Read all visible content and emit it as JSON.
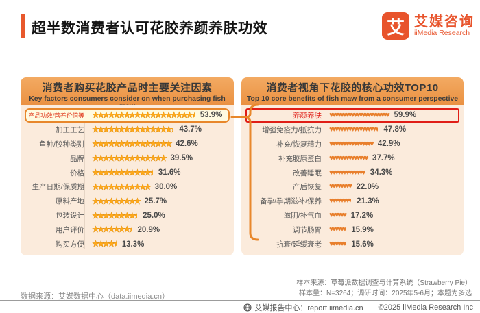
{
  "header": {
    "title": "超半数消费者认可花胶养颜养肤功效",
    "logo": {
      "mark": "艾",
      "name_cn": "艾媒咨询",
      "name_en": "iiMedia Research"
    }
  },
  "colors": {
    "accent_orange_red": "#E8582C",
    "panel_header_orange": "#EFA155",
    "panel_body_peach": "#FBEBDC",
    "star_gold": "#FFA91A",
    "heart_orange": "#E87F2C",
    "highlight_border_left": "#E8872B",
    "highlight_border_right": "#E01E17"
  },
  "chart_data": [
    {
      "type": "bar",
      "icon": "star",
      "title": "消费者购买花胶产品时主要关注因素",
      "subtitle": "Key factors consumers consider on when purchasing fish maw",
      "unit": "%",
      "categories": [
        "产品功效/营养价值等",
        "加工工艺",
        "鱼种/胶种类别",
        "品牌",
        "价格",
        "生产日期/保质期",
        "原料产地",
        "包装设计",
        "用户评价",
        "购买方便"
      ],
      "values": [
        53.9,
        43.7,
        42.6,
        39.5,
        31.6,
        30.0,
        25.7,
        25.0,
        20.9,
        13.3
      ],
      "icon_counts": [
        19.5,
        15.5,
        15,
        14,
        11.5,
        11,
        9,
        8.5,
        7.5,
        4.5
      ],
      "highlight_index": 0,
      "xlim": [
        0,
        60
      ],
      "legend": "none"
    },
    {
      "type": "bar",
      "icon": "heart",
      "title": "消费者视角下花胶的核心功效TOP10",
      "subtitle": "Top 10 core benefits of fish maw from a consumer perspective",
      "unit": "%",
      "categories": [
        "养颜养肤",
        "增强免疫力/抵抗力",
        "补充/恢复精力",
        "补充胶原蛋白",
        "改善睡眠",
        "产后恢复",
        "备孕/孕期滋补/保养",
        "滋阴/补气血",
        "调节肠胃",
        "抗衰/延缓衰老"
      ],
      "values": [
        59.9,
        47.8,
        42.9,
        37.7,
        34.3,
        22.0,
        21.3,
        17.2,
        15.9,
        15.6
      ],
      "icon_counts": [
        22,
        17.5,
        16,
        14,
        12.5,
        8,
        7.5,
        6,
        5.5,
        5.5
      ],
      "highlight_index": 0,
      "xlim": [
        0,
        65
      ],
      "legend": "none"
    }
  ],
  "footnotes": {
    "data_source": "数据来源：艾媒数据中心（data.iimedia.cn）",
    "sample_source": "样本来源：草莓派数据调查与计算系统（Strawberry Pie）",
    "sample_info": "样本量：N=3264；调研时间：2025年5-6月；本题为多选"
  },
  "footer": {
    "report_center": "艾媒报告中心：report.iimedia.cn",
    "copyright": "©2025  iiMedia Research  Inc"
  }
}
